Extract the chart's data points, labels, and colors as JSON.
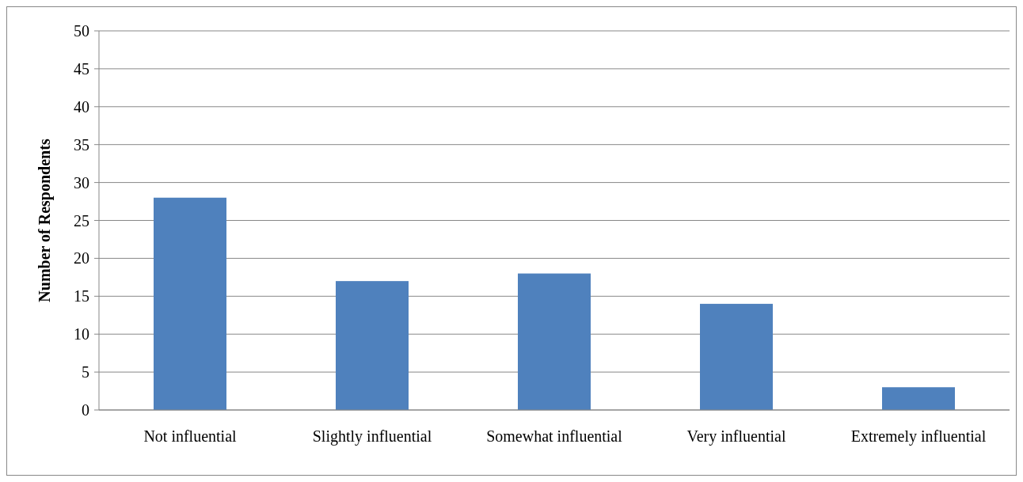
{
  "chart_data": {
    "type": "bar",
    "ylabel": "Number of Respondents",
    "categories": [
      "Not influential",
      "Slightly influential",
      "Somewhat influential",
      "Very influential",
      "Extremely influential"
    ],
    "values": [
      28,
      17,
      18,
      14,
      3
    ],
    "color": "#4f81bd",
    "ylim": [
      0,
      50
    ],
    "yticks": [
      0,
      5,
      10,
      15,
      20,
      25,
      30,
      35,
      40,
      45,
      50
    ],
    "grid": "y"
  }
}
